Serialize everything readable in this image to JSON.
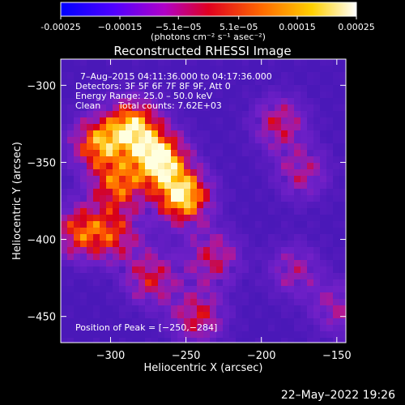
{
  "chart_data": {
    "type": "heatmap",
    "title": "Reconstructed RHESSI Image",
    "xlabel": "Heliocentric X (arcsec)",
    "ylabel": "Heliocentric Y (arcsec)",
    "xlim": [
      -333,
      -144
    ],
    "ylim": [
      -467,
      -283
    ],
    "xticks": [
      -300,
      -250,
      -200,
      -150
    ],
    "yticks": [
      -300,
      -350,
      -400,
      -450
    ],
    "xtick_labels": [
      "−300",
      "−250",
      "−200",
      "−150"
    ],
    "ytick_labels": [
      "−300",
      "−350",
      "−400",
      "−450"
    ],
    "colorbar": {
      "range": [
        -0.00025,
        0.00025
      ],
      "tick_values": [
        -0.00025,
        -0.00015,
        -5.1e-05,
        5.1e-05,
        0.00015,
        0.00025
      ],
      "tick_labels": [
        "-0.00025",
        "−0.00015",
        "−5.1e−05",
        "5.1e−05",
        "0.00015",
        "0.00025"
      ],
      "units": "(photons cm⁻² s⁻¹ asec⁻²)",
      "colors": [
        "#0000ff",
        "#6a00ff",
        "#c000c0",
        "#e00000",
        "#ff8000",
        "#ffff00",
        "#ffffff"
      ]
    },
    "peak": {
      "x": -250,
      "y": -284
    },
    "sources": [
      {
        "x": -268,
        "y": -348,
        "value": 0.00025
      },
      {
        "x": -252,
        "y": -372,
        "value": 0.00024
      },
      {
        "x": -285,
        "y": -327,
        "value": 0.00021
      },
      {
        "x": -308,
        "y": -338,
        "value": 0.00018
      },
      {
        "x": -295,
        "y": -365,
        "value": 0.00016
      },
      {
        "x": -320,
        "y": -395,
        "value": 0.00015
      },
      {
        "x": -297,
        "y": -397,
        "value": 0.00012
      },
      {
        "x": -273,
        "y": -425,
        "value": 0.00012
      },
      {
        "x": -232,
        "y": -412,
        "value": 0.00011
      },
      {
        "x": -242,
        "y": -450,
        "value": 0.00012
      },
      {
        "x": -188,
        "y": -325,
        "value": 0.00011
      },
      {
        "x": -173,
        "y": -357,
        "value": 9e-05
      },
      {
        "x": -178,
        "y": -420,
        "value": 8e-05
      },
      {
        "x": -150,
        "y": -445,
        "value": 8e-05
      }
    ]
  },
  "overlay": {
    "time_range": "7–Aug–2015 04:11:36.000 to 04:17:36.000",
    "detectors": "Detectors: 3F 5F 6F 7F 8F 9F, Att 0",
    "energy": "Energy Range: 25.0 – 50.0 keV",
    "clean": "Clean",
    "total_counts": "Total counts: 7.62E+03",
    "peak_label": "Position of Peak = [−250,−284]"
  },
  "timestamp": "22–May–2022 19:26"
}
